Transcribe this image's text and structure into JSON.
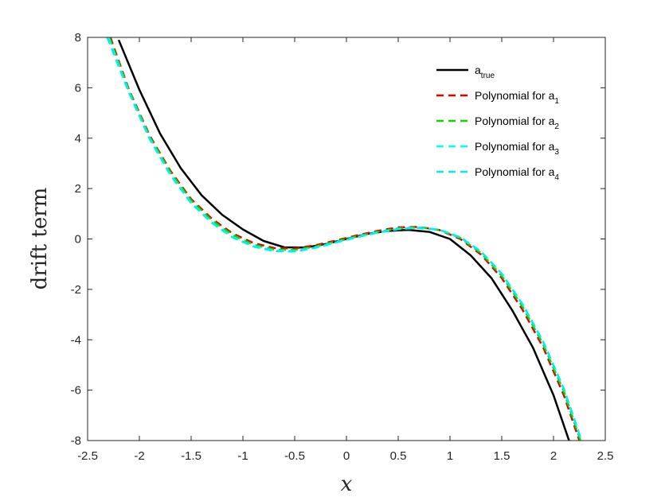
{
  "chart_data": {
    "type": "line",
    "xlabel": "x",
    "ylabel": "drift term",
    "xlim": [
      -2.5,
      2.5
    ],
    "ylim": [
      -8,
      8
    ],
    "x_ticks": [
      -2.5,
      -2,
      -1.5,
      -1,
      -0.5,
      0,
      0.5,
      1,
      1.5,
      2,
      2.5
    ],
    "y_ticks": [
      -8,
      -6,
      -4,
      -2,
      0,
      2,
      4,
      6,
      8
    ],
    "x_tick_labels": [
      "-2.5",
      "-2",
      "-1.5",
      "-1",
      "-0.5",
      "0",
      "0.5",
      "1",
      "1.5",
      "2",
      "2.5"
    ],
    "y_tick_labels": [
      "-8",
      "-6",
      "-4",
      "-2",
      "0",
      "2",
      "4",
      "6",
      "8"
    ],
    "grid": false,
    "legend_position": "top-right",
    "series": [
      {
        "name": "a",
        "name_sub": "true",
        "color": "#000000",
        "style": "solid",
        "x": [
          -2.2,
          -2.0,
          -1.8,
          -1.6,
          -1.4,
          -1.2,
          -1.0,
          -0.8,
          -0.6,
          -0.4,
          -0.2,
          0.0,
          0.2,
          0.4,
          0.6,
          0.8,
          1.0,
          1.2,
          1.4,
          1.6,
          1.8,
          2.0,
          2.15
        ],
        "y": [
          7.9,
          5.92,
          4.18,
          2.81,
          1.74,
          0.96,
          0.38,
          -0.08,
          -0.33,
          -0.34,
          -0.2,
          0.0,
          0.2,
          0.32,
          0.36,
          0.28,
          0.0,
          -0.65,
          -1.55,
          -2.82,
          -4.3,
          -6.2,
          -8.0
        ]
      },
      {
        "name": "Polynomial for a",
        "name_sub": "1",
        "color": "#e00000",
        "style": "dashed",
        "x": [
          -2.28,
          -2.1,
          -1.9,
          -1.7,
          -1.5,
          -1.3,
          -1.1,
          -0.9,
          -0.7,
          -0.5,
          -0.3,
          -0.1,
          0.1,
          0.3,
          0.5,
          0.7,
          0.9,
          1.1,
          1.3,
          1.5,
          1.7,
          1.9,
          2.1,
          2.25
        ],
        "y": [
          8.0,
          5.92,
          4.1,
          2.7,
          1.58,
          0.8,
          0.22,
          -0.16,
          -0.36,
          -0.38,
          -0.25,
          -0.06,
          0.14,
          0.32,
          0.46,
          0.48,
          0.35,
          0.0,
          -0.62,
          -1.55,
          -2.8,
          -4.3,
          -6.2,
          -8.0
        ]
      },
      {
        "name": "Polynomial for a",
        "name_sub": "2",
        "color": "#00e000",
        "style": "dashed",
        "x": [
          -2.29,
          -2.1,
          -1.9,
          -1.7,
          -1.5,
          -1.3,
          -1.1,
          -0.9,
          -0.7,
          -0.5,
          -0.3,
          -0.1,
          0.1,
          0.3,
          0.5,
          0.7,
          0.9,
          1.1,
          1.3,
          1.5,
          1.7,
          1.9,
          2.1,
          2.26
        ],
        "y": [
          8.0,
          5.88,
          4.05,
          2.64,
          1.52,
          0.74,
          0.16,
          -0.22,
          -0.42,
          -0.44,
          -0.3,
          -0.1,
          0.1,
          0.28,
          0.42,
          0.46,
          0.36,
          0.04,
          -0.56,
          -1.46,
          -2.68,
          -4.18,
          -6.05,
          -8.0
        ]
      },
      {
        "name": "Polynomial for a",
        "name_sub": "3",
        "color": "#00ffff",
        "style": "dashed",
        "x": [
          -2.3,
          -2.1,
          -1.9,
          -1.7,
          -1.5,
          -1.3,
          -1.1,
          -0.9,
          -0.7,
          -0.5,
          -0.3,
          -0.1,
          0.1,
          0.3,
          0.5,
          0.7,
          0.9,
          1.1,
          1.3,
          1.5,
          1.7,
          1.9,
          2.1,
          2.27
        ],
        "y": [
          8.0,
          5.82,
          3.98,
          2.56,
          1.44,
          0.66,
          0.08,
          -0.28,
          -0.46,
          -0.48,
          -0.34,
          -0.13,
          0.08,
          0.26,
          0.4,
          0.45,
          0.37,
          0.07,
          -0.5,
          -1.38,
          -2.58,
          -4.08,
          -5.95,
          -8.0
        ]
      },
      {
        "name": "Polynomial for a",
        "name_sub": "4",
        "color": "#00eeee",
        "style": "dashed",
        "x": [
          -2.31,
          -2.1,
          -1.9,
          -1.7,
          -1.5,
          -1.3,
          -1.1,
          -0.9,
          -0.7,
          -0.5,
          -0.3,
          -0.1,
          0.1,
          0.3,
          0.5,
          0.7,
          0.9,
          1.1,
          1.3,
          1.5,
          1.7,
          1.9,
          2.1,
          2.27
        ],
        "y": [
          8.0,
          5.8,
          3.96,
          2.54,
          1.42,
          0.64,
          0.06,
          -0.3,
          -0.48,
          -0.5,
          -0.35,
          -0.14,
          0.07,
          0.25,
          0.39,
          0.44,
          0.36,
          0.06,
          -0.5,
          -1.38,
          -2.58,
          -4.08,
          -5.95,
          -8.0
        ]
      }
    ]
  }
}
